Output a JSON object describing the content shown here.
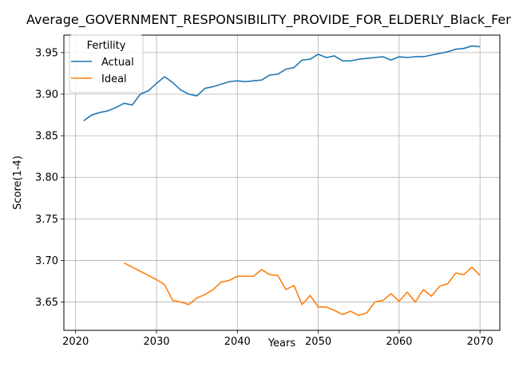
{
  "chart_data": {
    "type": "line",
    "title": "Average_GOVERNMENT_RESPONSIBILITY_PROVIDE_FOR_ELDERLY_Black_Female",
    "xlabel": "Years",
    "ylabel": "Score(1-4)",
    "xlim": [
      2018.55,
      2072.45
    ],
    "ylim": [
      3.616,
      3.971
    ],
    "xticks": [
      2020,
      2030,
      2040,
      2050,
      2060,
      2070
    ],
    "yticks": [
      3.65,
      3.7,
      3.75,
      3.8,
      3.85,
      3.9,
      3.95
    ],
    "grid": true,
    "legend": {
      "title": "Fertility",
      "placement": "top-left"
    },
    "series": [
      {
        "name": "Actual",
        "color": "#1f77b4",
        "x": [
          2021,
          2022,
          2023,
          2024,
          2025,
          2026,
          2027,
          2028,
          2029,
          2030,
          2031,
          2032,
          2033,
          2034,
          2035,
          2036,
          2037,
          2038,
          2039,
          2040,
          2041,
          2042,
          2043,
          2044,
          2045,
          2046,
          2047,
          2048,
          2049,
          2050,
          2051,
          2052,
          2053,
          2054,
          2055,
          2056,
          2057,
          2058,
          2059,
          2060,
          2061,
          2062,
          2063,
          2064,
          2065,
          2066,
          2067,
          2068,
          2069,
          2070
        ],
        "y": [
          3.868,
          3.875,
          3.878,
          3.88,
          3.884,
          3.889,
          3.887,
          3.9,
          3.904,
          3.913,
          3.921,
          3.914,
          3.905,
          3.9,
          3.898,
          3.907,
          3.909,
          3.912,
          3.915,
          3.916,
          3.915,
          3.916,
          3.917,
          3.923,
          3.924,
          3.93,
          3.932,
          3.941,
          3.942,
          3.948,
          3.944,
          3.946,
          3.94,
          3.94,
          3.942,
          3.943,
          3.944,
          3.945,
          3.941,
          3.945,
          3.944,
          3.945,
          3.945,
          3.947,
          3.949,
          3.951,
          3.954,
          3.955,
          3.958,
          3.957
        ]
      },
      {
        "name": "Ideal",
        "color": "#ff7f0e",
        "x": [
          2026,
          2027,
          2028,
          2029,
          2030,
          2031,
          2032,
          2033,
          2034,
          2035,
          2036,
          2037,
          2038,
          2039,
          2040,
          2041,
          2042,
          2043,
          2044,
          2045,
          2046,
          2047,
          2048,
          2049,
          2050,
          2051,
          2052,
          2053,
          2054,
          2055,
          2056,
          2057,
          2058,
          2059,
          2060,
          2061,
          2062,
          2063,
          2064,
          2065,
          2066,
          2067,
          2068,
          2069,
          2070
        ],
        "y": [
          3.697,
          3.692,
          3.687,
          3.682,
          3.677,
          3.671,
          3.652,
          3.65,
          3.647,
          3.655,
          3.659,
          3.665,
          3.674,
          3.676,
          3.681,
          3.681,
          3.681,
          3.689,
          3.683,
          3.682,
          3.665,
          3.67,
          3.647,
          3.658,
          3.644,
          3.644,
          3.64,
          3.635,
          3.639,
          3.634,
          3.637,
          3.65,
          3.652,
          3.66,
          3.651,
          3.662,
          3.65,
          3.665,
          3.657,
          3.669,
          3.672,
          3.685,
          3.683,
          3.692,
          3.682
        ]
      }
    ]
  }
}
